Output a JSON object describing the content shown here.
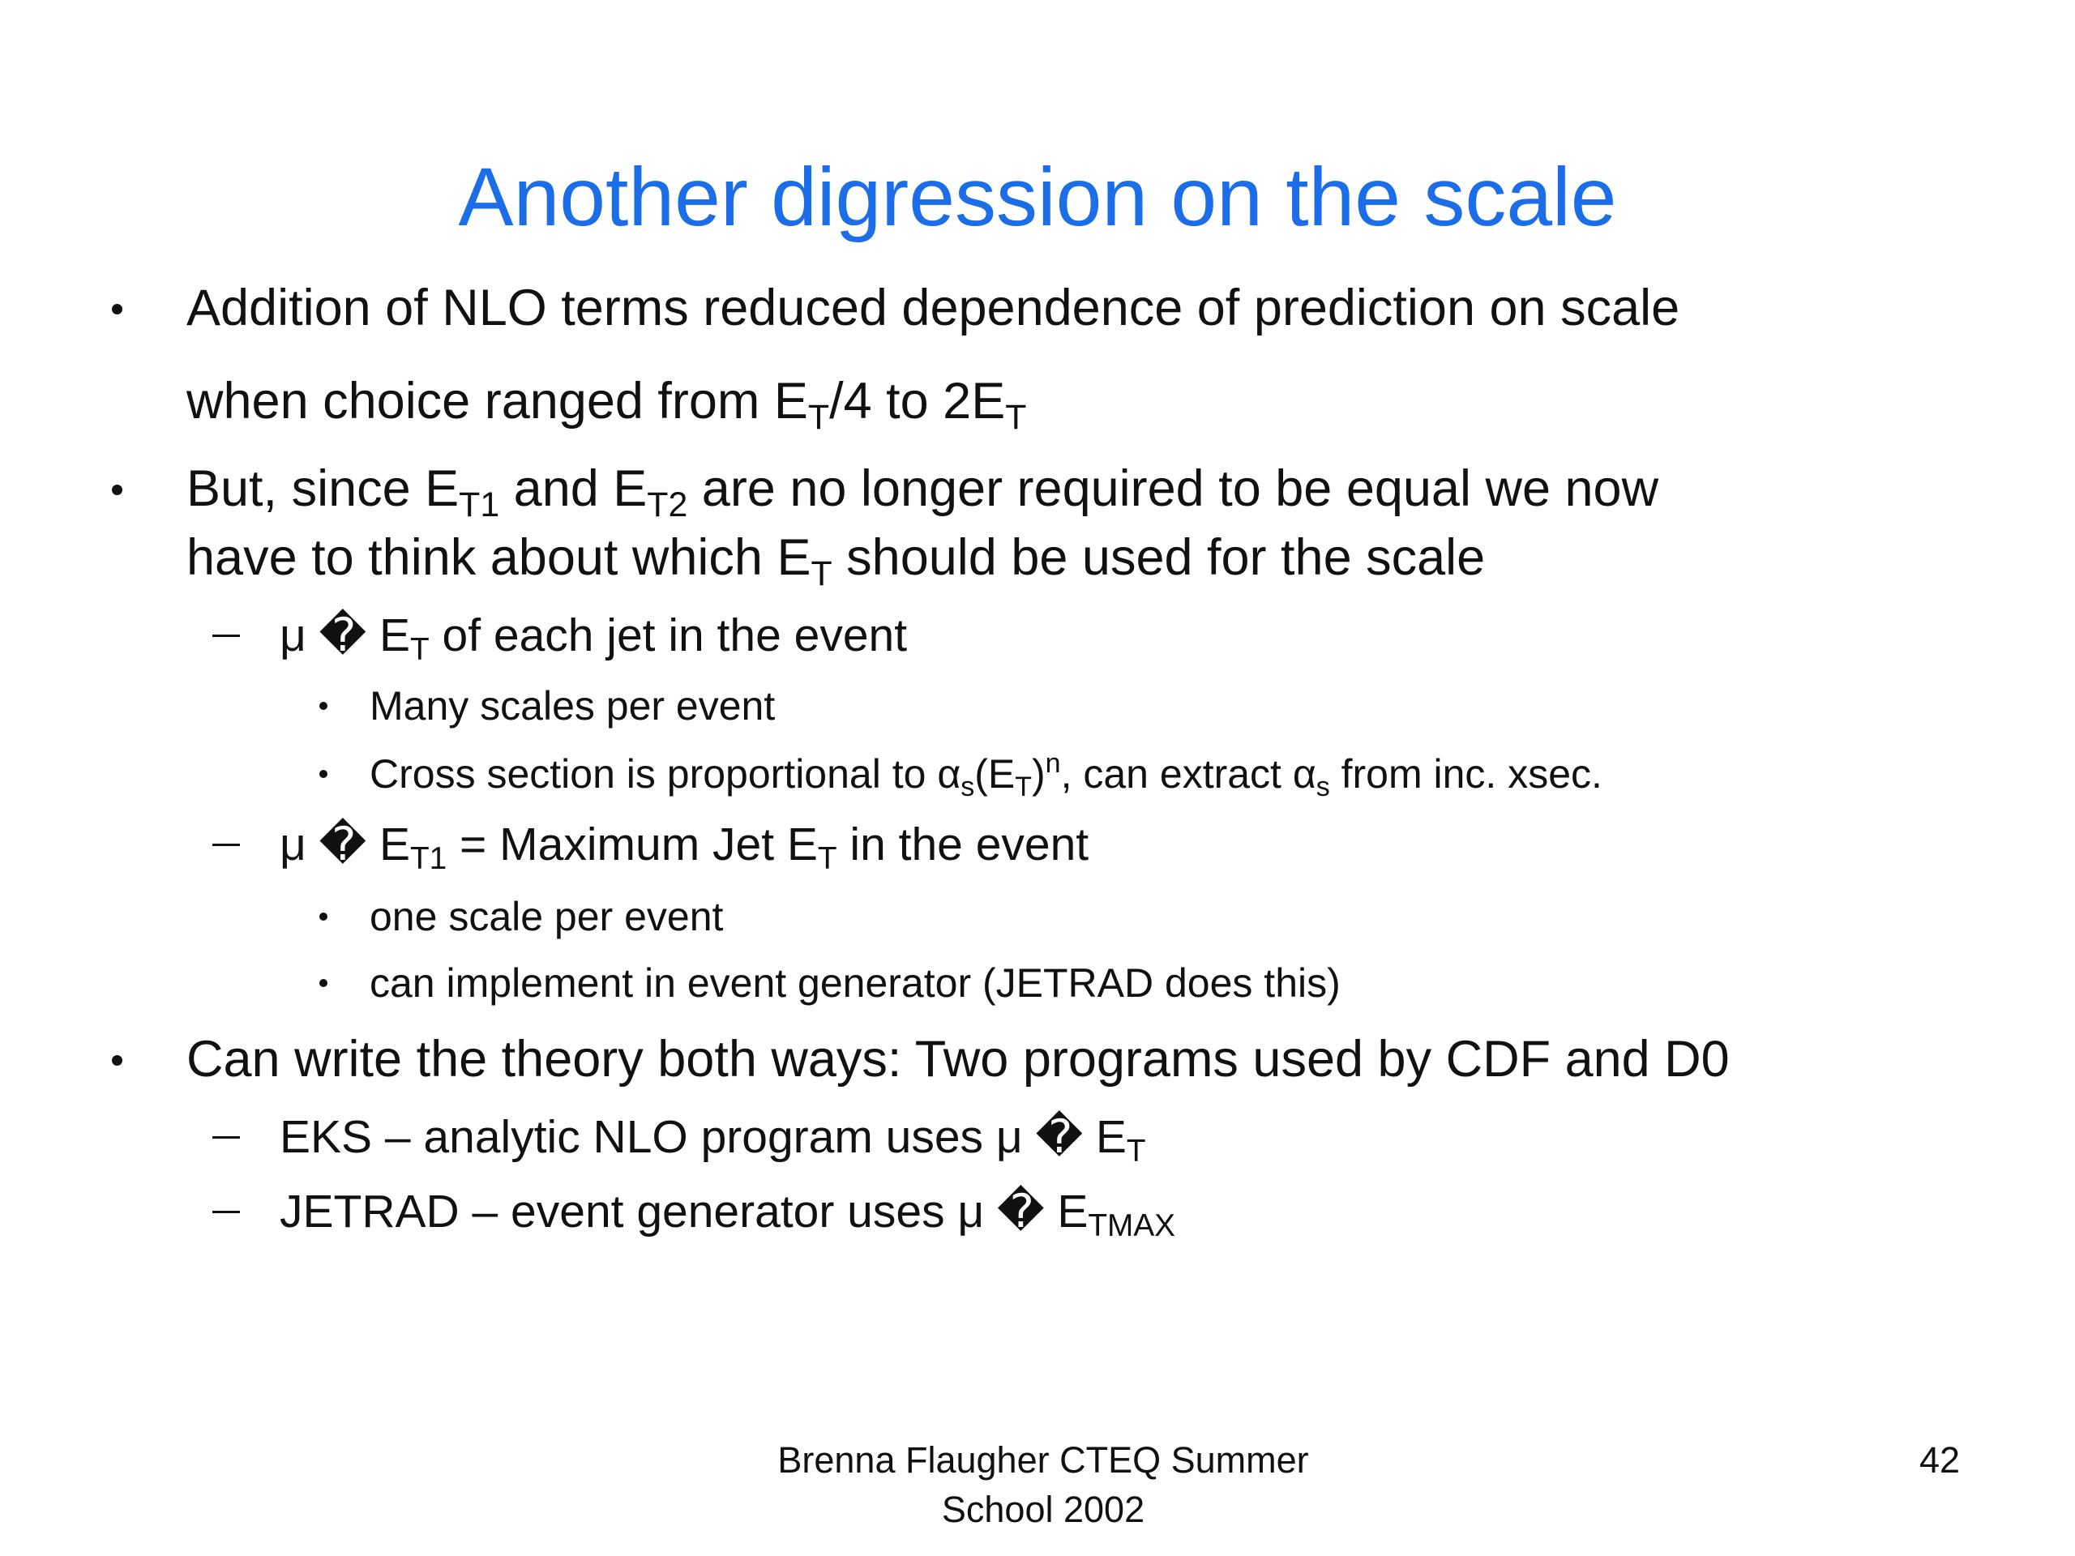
{
  "title": "Another digression on the scale",
  "bullets": [
    {
      "lines": [
        [
          "Addition of NLO terms reduced dependence of prediction on scale"
        ],
        [
          "when choice ranged from E",
          {
            "sub": "T"
          },
          "/4 to 2E",
          {
            "sub": "T"
          }
        ]
      ]
    },
    {
      "lines": [
        [
          "But, since E",
          {
            "sub": "T1"
          },
          " and E",
          {
            "sub": "T2"
          },
          " are no longer required to be equal we now"
        ],
        [
          "have to think about which E",
          {
            "sub": "T"
          },
          " should be used for the scale"
        ]
      ],
      "subitems": [
        {
          "lines": [
            [
              "μ � E",
              {
                "sub": "T"
              },
              " of each jet in the event"
            ]
          ],
          "subitems": [
            {
              "lines": [
                [
                  "Many scales per event"
                ]
              ]
            },
            {
              "lines": [
                [
                  "Cross section is proportional to α",
                  {
                    "sub": "s"
                  },
                  "(E",
                  {
                    "sub": "T"
                  },
                  ")",
                  {
                    "sup": "n"
                  },
                  ", can extract α",
                  {
                    "sub": "s"
                  },
                  " from inc. xsec."
                ]
              ]
            }
          ]
        },
        {
          "lines": [
            [
              "μ � E",
              {
                "sub": "T1"
              },
              " = Maximum Jet E",
              {
                "sub": "T"
              },
              " in the event"
            ]
          ],
          "subitems": [
            {
              "lines": [
                [
                  "one scale per event"
                ]
              ]
            },
            {
              "lines": [
                [
                  "can implement in event generator (JETRAD does this)"
                ]
              ]
            }
          ]
        }
      ]
    },
    {
      "lines": [
        [
          "Can write the theory both ways: Two programs used by CDF and D0"
        ]
      ],
      "subitems": [
        {
          "lines": [
            [
              "EKS – analytic NLO program uses μ � E",
              {
                "sub": "T"
              }
            ]
          ]
        },
        {
          "lines": [
            [
              "JETRAD – event generator uses μ � E",
              {
                "sub": "TMAX"
              }
            ]
          ]
        }
      ]
    }
  ],
  "footer": {
    "lines": [
      "Brenna Flaugher CTEQ Summer",
      "School 2002"
    ],
    "page_number": "42"
  }
}
